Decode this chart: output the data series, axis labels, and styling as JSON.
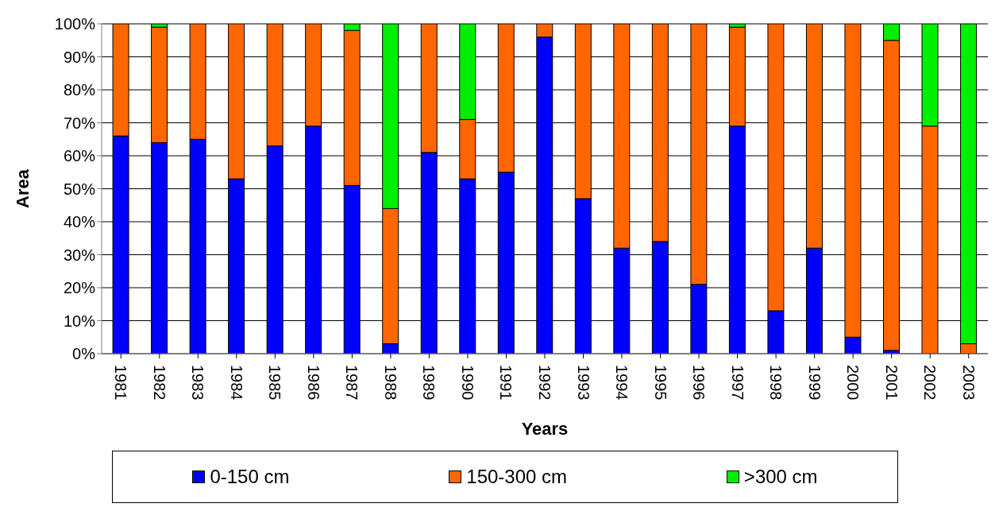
{
  "chart_data": {
    "type": "bar",
    "stacked": true,
    "xlabel": "Years",
    "ylabel": "Area",
    "categories": [
      "1981",
      "1982",
      "1983",
      "1984",
      "1985",
      "1986",
      "1987",
      "1988",
      "1989",
      "1990",
      "1991",
      "1992",
      "1993",
      "1994",
      "1995",
      "1996",
      "1997",
      "1998",
      "1999",
      "2000",
      "2001",
      "2002",
      "2003"
    ],
    "series": [
      {
        "name": "0-150 cm",
        "color": "#0000ff",
        "values": [
          66,
          64,
          65,
          53,
          63,
          69,
          51,
          3,
          61,
          53,
          55,
          96,
          47,
          32,
          34,
          21,
          69,
          13,
          32,
          5,
          1,
          0,
          0
        ]
      },
      {
        "name": "150-300 cm",
        "color": "#ff6600",
        "values": [
          34,
          35,
          35,
          47,
          37,
          31,
          47,
          41,
          39,
          18,
          45,
          4,
          53,
          68,
          66,
          79,
          30,
          87,
          68,
          95,
          94,
          69,
          3
        ]
      },
      {
        "name": ">300 cm",
        "color": "#00ee00",
        "values": [
          0,
          1,
          0,
          0,
          0,
          0,
          2,
          56,
          0,
          29,
          0,
          0,
          0,
          0,
          0,
          0,
          1,
          0,
          0,
          0,
          5,
          31,
          97
        ]
      }
    ],
    "ylim": [
      0,
      100
    ],
    "yticks": [
      {
        "value": 0,
        "label": "0%"
      },
      {
        "value": 10,
        "label": "10%"
      },
      {
        "value": 20,
        "label": "20%"
      },
      {
        "value": 30,
        "label": "30%"
      },
      {
        "value": 40,
        "label": "40%"
      },
      {
        "value": 50,
        "label": "50%"
      },
      {
        "value": 60,
        "label": "60%"
      },
      {
        "value": 70,
        "label": "70%"
      },
      {
        "value": 80,
        "label": "80%"
      },
      {
        "value": 90,
        "label": "90%"
      },
      {
        "value": 100,
        "label": "100%"
      }
    ],
    "grid": "y",
    "legend": "bottom"
  }
}
